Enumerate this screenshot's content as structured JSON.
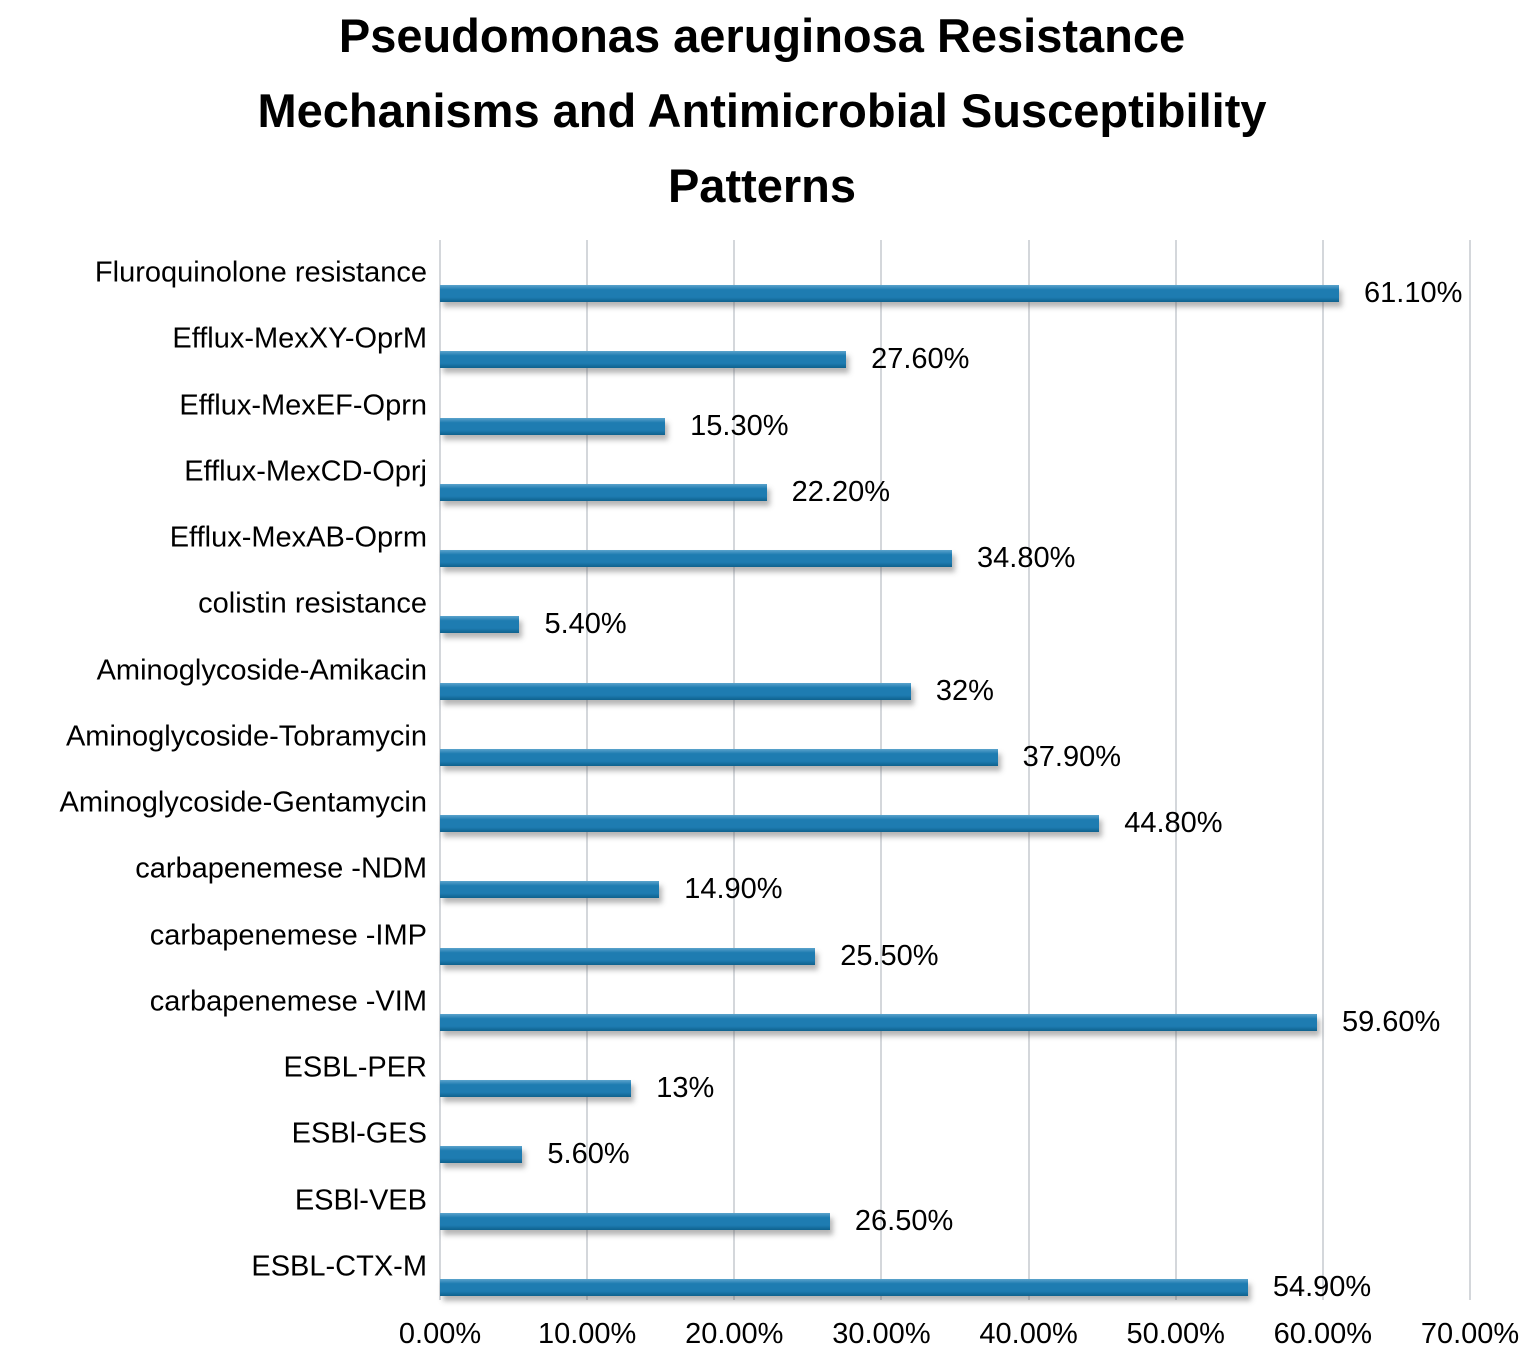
{
  "chart_data": {
    "type": "bar",
    "orientation": "horizontal",
    "title": "Pseudomonas aeruginosa Resistance Mechanisms and Antimicrobial Susceptibility Patterns",
    "title_lines": [
      "Pseudomonas aeruginosa Resistance",
      "Mechanisms and Antimicrobial Susceptibility",
      "Patterns"
    ],
    "categories": [
      "Fluroquinolone resistance",
      "Efflux-MexXY-OprM",
      "Efflux-MexEF-Oprn",
      "Efflux-MexCD-Oprj",
      "Efflux-MexAB-Oprm",
      "colistin resistance",
      "Aminoglycoside-Amikacin",
      "Aminoglycoside-Tobramycin",
      "Aminoglycoside-Gentamycin",
      "carbapenemese -NDM",
      "carbapenemese -IMP",
      "carbapenemese -VIM",
      "ESBL-PER",
      "ESBl-GES",
      "ESBl-VEB",
      "ESBL-CTX-M"
    ],
    "values": [
      61.1,
      27.6,
      15.3,
      22.2,
      34.8,
      5.4,
      32,
      37.9,
      44.8,
      14.9,
      25.5,
      59.6,
      13,
      5.6,
      26.5,
      54.9
    ],
    "data_labels": [
      "61.10%",
      "27.60%",
      "15.30%",
      "22.20%",
      "34.80%",
      "5.40%",
      "32%",
      "37.90%",
      "44.80%",
      "14.90%",
      "25.50%",
      "59.60%",
      "13%",
      "5.60%",
      "26.50%",
      "54.90%"
    ],
    "x_ticks": [
      "0.00%",
      "10.00%",
      "20.00%",
      "30.00%",
      "40.00%",
      "50.00%",
      "60.00%",
      "70.00%"
    ],
    "xlim": [
      0,
      70
    ],
    "xlabel": "",
    "ylabel": "",
    "grid": "vertical-only",
    "legend": "none",
    "background": "#FFFFFF",
    "text_color": "#000000",
    "gridline_color": "#D4D7DB",
    "bar_color": "#1E7CB1",
    "bar_gradient_top": "#5BA3CC",
    "bar_gradient_bottom": "#0E618D"
  }
}
